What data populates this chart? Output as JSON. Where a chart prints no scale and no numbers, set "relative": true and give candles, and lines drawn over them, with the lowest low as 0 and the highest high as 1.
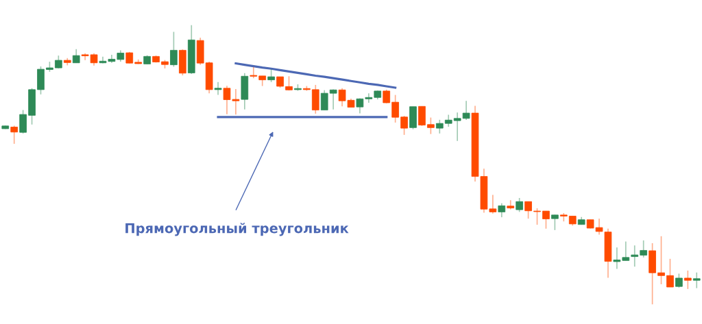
{
  "chart_data": {
    "type": "candlestick",
    "relative": true,
    "categories": [
      null,
      null,
      null,
      null,
      null,
      null,
      null,
      null,
      null,
      null,
      null,
      null,
      null,
      null,
      null,
      null,
      null,
      null,
      null,
      null,
      null,
      null,
      null,
      null,
      null,
      null,
      null,
      null,
      null,
      null,
      null,
      null,
      null,
      null,
      null,
      null,
      null,
      null,
      null,
      null,
      null,
      null,
      null,
      null,
      null,
      null,
      null,
      null,
      null,
      null,
      null,
      null,
      null,
      null,
      null,
      null,
      null,
      null,
      null,
      null,
      null,
      null,
      null,
      null,
      null,
      null,
      null,
      null,
      null,
      null,
      null,
      null,
      null,
      null,
      null,
      null,
      null,
      null,
      null
    ],
    "ohlc": [
      [
        0.629,
        0.64,
        0.628,
        0.639
      ],
      [
        0.635,
        0.64,
        0.575,
        0.617
      ],
      [
        0.616,
        0.696,
        0.612,
        0.68
      ],
      [
        0.677,
        0.774,
        0.644,
        0.769
      ],
      [
        0.769,
        0.852,
        0.752,
        0.842
      ],
      [
        0.841,
        0.869,
        0.833,
        0.847
      ],
      [
        0.847,
        0.891,
        0.845,
        0.874
      ],
      [
        0.874,
        0.882,
        0.856,
        0.866
      ],
      [
        0.865,
        0.914,
        0.865,
        0.891
      ],
      [
        0.894,
        0.899,
        0.875,
        0.89
      ],
      [
        0.894,
        0.899,
        0.855,
        0.865
      ],
      [
        0.865,
        0.887,
        0.863,
        0.871
      ],
      [
        0.87,
        0.894,
        0.865,
        0.878
      ],
      [
        0.877,
        0.91,
        0.869,
        0.9
      ],
      [
        0.901,
        0.904,
        0.863,
        0.864
      ],
      [
        0.867,
        0.877,
        0.861,
        0.862
      ],
      [
        0.861,
        0.892,
        0.86,
        0.888
      ],
      [
        0.888,
        0.891,
        0.866,
        0.868
      ],
      [
        0.869,
        0.875,
        0.845,
        0.859
      ],
      [
        0.858,
        0.976,
        0.851,
        0.91
      ],
      [
        0.91,
        0.913,
        0.82,
        0.828
      ],
      [
        0.829,
        1.0,
        0.825,
        0.947
      ],
      [
        0.945,
        0.955,
        0.858,
        0.864
      ],
      [
        0.865,
        0.869,
        0.756,
        0.769
      ],
      [
        0.769,
        0.796,
        0.75,
        0.774
      ],
      [
        0.774,
        0.783,
        0.681,
        0.733
      ],
      [
        0.734,
        0.771,
        0.68,
        0.729
      ],
      [
        0.734,
        0.828,
        0.698,
        0.817
      ],
      [
        0.82,
        0.85,
        0.81,
        0.817
      ],
      [
        0.818,
        0.818,
        0.782,
        0.804
      ],
      [
        0.804,
        0.842,
        0.796,
        0.815
      ],
      [
        0.815,
        0.815,
        0.776,
        0.781
      ],
      [
        0.78,
        0.817,
        0.766,
        0.768
      ],
      [
        0.769,
        0.788,
        0.765,
        0.773
      ],
      [
        0.773,
        0.782,
        0.765,
        0.769
      ],
      [
        0.769,
        0.786,
        0.683,
        0.696
      ],
      [
        0.696,
        0.767,
        0.696,
        0.756
      ],
      [
        0.756,
        0.77,
        0.698,
        0.768
      ],
      [
        0.768,
        0.774,
        0.709,
        0.729
      ],
      [
        0.731,
        0.737,
        0.706,
        0.706
      ],
      [
        0.707,
        0.738,
        0.684,
        0.736
      ],
      [
        0.736,
        0.756,
        0.722,
        0.741
      ],
      [
        0.741,
        0.766,
        0.734,
        0.764
      ],
      [
        0.764,
        0.769,
        0.72,
        0.722
      ],
      [
        0.724,
        0.75,
        0.651,
        0.67
      ],
      [
        0.671,
        0.675,
        0.607,
        0.631
      ],
      [
        0.633,
        0.708,
        0.627,
        0.708
      ],
      [
        0.709,
        0.709,
        0.639,
        0.642
      ],
      [
        0.644,
        0.669,
        0.61,
        0.633
      ],
      [
        0.631,
        0.661,
        0.612,
        0.648
      ],
      [
        0.648,
        0.679,
        0.636,
        0.66
      ],
      [
        0.658,
        0.687,
        0.585,
        0.666
      ],
      [
        0.666,
        0.729,
        0.661,
        0.685
      ],
      [
        0.685,
        0.711,
        0.44,
        0.458
      ],
      [
        0.458,
        0.486,
        0.328,
        0.341
      ],
      [
        0.342,
        0.392,
        0.325,
        0.331
      ],
      [
        0.331,
        0.362,
        0.312,
        0.353
      ],
      [
        0.352,
        0.373,
        0.34,
        0.345
      ],
      [
        0.339,
        0.381,
        0.331,
        0.368
      ],
      [
        0.368,
        0.368,
        0.307,
        0.335
      ],
      [
        0.334,
        0.344,
        0.285,
        0.332
      ],
      [
        0.334,
        0.334,
        0.271,
        0.306
      ],
      [
        0.307,
        0.321,
        0.266,
        0.32
      ],
      [
        0.32,
        0.327,
        0.297,
        0.316
      ],
      [
        0.316,
        0.316,
        0.282,
        0.288
      ],
      [
        0.286,
        0.313,
        0.286,
        0.303
      ],
      [
        0.303,
        0.303,
        0.272,
        0.273
      ],
      [
        0.275,
        0.307,
        0.25,
        0.261
      ],
      [
        0.259,
        0.271,
        0.095,
        0.154
      ],
      [
        0.153,
        0.204,
        0.127,
        0.159
      ],
      [
        0.157,
        0.225,
        0.157,
        0.168
      ],
      [
        0.171,
        0.211,
        0.135,
        0.177
      ],
      [
        0.176,
        0.229,
        0.168,
        0.193
      ],
      [
        0.192,
        0.219,
        0.0,
        0.113
      ],
      [
        0.113,
        0.244,
        0.072,
        0.103
      ],
      [
        0.103,
        0.163,
        0.062,
        0.062
      ],
      [
        0.064,
        0.11,
        0.06,
        0.094
      ],
      [
        0.094,
        0.121,
        0.055,
        0.086
      ],
      [
        0.086,
        0.114,
        0.058,
        0.092
      ]
    ],
    "colors": [
      "#2e8a57",
      "#ff4b00",
      "#2e8a57",
      "#2e8a57",
      "#2e8a57",
      "#2e8a57",
      "#2e8a57",
      "#ff4b00",
      "#2e8a57",
      "#ff4b00",
      "#ff4b00",
      "#2e8a57",
      "#2e8a57",
      "#2e8a57",
      "#ff4b00",
      "#ff4b00",
      "#2e8a57",
      "#ff4b00",
      "#ff4b00",
      "#2e8a57",
      "#ff4b00",
      "#2e8a57",
      "#ff4b00",
      "#ff4b00",
      "#2e8a57",
      "#ff4b00",
      "#ff4b00",
      "#2e8a57",
      "#ff4b00",
      "#ff4b00",
      "#2e8a57",
      "#ff4b00",
      "#ff4b00",
      "#2e8a57",
      "#ff4b00",
      "#ff4b00",
      "#2e8a57",
      "#2e8a57",
      "#ff4b00",
      "#ff4b00",
      "#2e8a57",
      "#2e8a57",
      "#2e8a57",
      "#ff4b00",
      "#ff4b00",
      "#ff4b00",
      "#2e8a57",
      "#ff4b00",
      "#ff4b00",
      "#2e8a57",
      "#2e8a57",
      "#2e8a57",
      "#2e8a57",
      "#ff4b00",
      "#ff4b00",
      "#ff4b00",
      "#2e8a57",
      "#ff4b00",
      "#2e8a57",
      "#ff4b00",
      "#ff4b00",
      "#ff4b00",
      "#2e8a57",
      "#ff4b00",
      "#ff4b00",
      "#2e8a57",
      "#ff4b00",
      "#ff4b00",
      "#ff4b00",
      "#2e8a57",
      "#2e8a57",
      "#2e8a57",
      "#2e8a57",
      "#ff4b00",
      "#ff4b00",
      "#ff4b00",
      "#2e8a57",
      "#ff4b00",
      "#2e8a57"
    ],
    "series": [
      {
        "type": "line",
        "color": "#4c68b4",
        "values": [
          null,
          null,
          null,
          null,
          null,
          null,
          null,
          null,
          null,
          null,
          null,
          null,
          null,
          null,
          null,
          null,
          null,
          null,
          null,
          null,
          null,
          null,
          null,
          null,
          null,
          null,
          0.863,
          0.858,
          0.853,
          0.848,
          0.844,
          0.839,
          0.834,
          0.829,
          0.824,
          0.819,
          0.815,
          0.81,
          0.805,
          0.8,
          0.795,
          0.79,
          0.786,
          0.781,
          0.776,
          null,
          null,
          null,
          null,
          null,
          null,
          null,
          null,
          null,
          null,
          null,
          null,
          null,
          null,
          null,
          null,
          null,
          null,
          null,
          null,
          null,
          null,
          null,
          null,
          null,
          null,
          null,
          null,
          null,
          null,
          null,
          null,
          null,
          null
        ]
      },
      {
        "type": "line",
        "color": "#4c68b4",
        "values": [
          null,
          null,
          null,
          null,
          null,
          null,
          null,
          null,
          null,
          null,
          null,
          null,
          null,
          null,
          null,
          null,
          null,
          null,
          null,
          null,
          null,
          null,
          null,
          null,
          0.671,
          0.671,
          0.671,
          0.671,
          0.671,
          0.671,
          0.671,
          0.671,
          0.671,
          0.671,
          0.671,
          0.671,
          0.671,
          0.671,
          0.671,
          0.671,
          0.671,
          0.671,
          0.671,
          0.671,
          null,
          null,
          null,
          null,
          null,
          null,
          null,
          null,
          null,
          null,
          null,
          null,
          null,
          null,
          null,
          null,
          null,
          null,
          null,
          null,
          null,
          null,
          null,
          null,
          null,
          null,
          null,
          null,
          null,
          null,
          null,
          null,
          null,
          null,
          null
        ]
      }
    ],
    "annotations": [
      "Прямоугольный треугольник"
    ]
  }
}
